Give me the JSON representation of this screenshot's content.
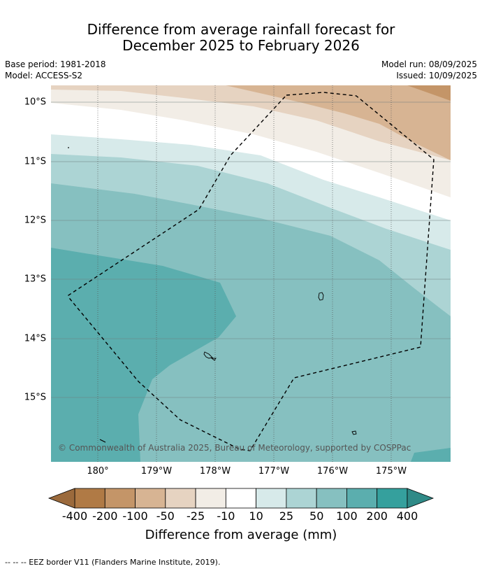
{
  "title": {
    "line1": "Difference from average rainfall forecast for",
    "line2": "December 2025 to February 2026"
  },
  "meta": {
    "base_period": "Base period: 1981-2018",
    "model": "Model: ACCESS-S2",
    "model_run": "Model run: 08/09/2025",
    "issued": "Issued: 10/09/2025"
  },
  "map": {
    "lat_labels": [
      "10°S",
      "11°S",
      "12°S",
      "13°S",
      "14°S",
      "15°S"
    ],
    "lon_labels": [
      "180°",
      "179°W",
      "178°W",
      "177°W",
      "176°W",
      "175°W"
    ],
    "copyright": "© Commonwealth of Australia 2025, Bureau of Meteorology, supported by COSPPac",
    "colors": {
      "brown_200_400": "#b07a45",
      "brown_100_200": "#c49568",
      "brown_50_100": "#d7b493",
      "brown_25_50": "#e6d3c1",
      "brown_10_25": "#f2ede6",
      "neutral": "#ffffff",
      "teal_10_25": "#d7eaea",
      "teal_25_50": "#acd4d4",
      "teal_50_100": "#86c0c0",
      "teal_100_200": "#5baeae",
      "teal_200_400": "#35a09d"
    }
  },
  "colorbar": {
    "ticks": [
      "-400",
      "-200",
      "-100",
      "-50",
      "-25",
      "-10",
      "10",
      "25",
      "50",
      "100",
      "200",
      "400"
    ],
    "colors": [
      "#b07a45",
      "#c49568",
      "#d7b493",
      "#e6d3c1",
      "#f2ede6",
      "#ffffff",
      "#d7eaea",
      "#acd4d4",
      "#86c0c0",
      "#5baeae",
      "#35a09d"
    ],
    "under_color": "#9b6a3c",
    "over_color": "#2f8a87",
    "title": "Difference from average (mm)"
  },
  "footnote": "--  --  -- EEZ border V11 (Flanders Marine Institute, 2019)."
}
